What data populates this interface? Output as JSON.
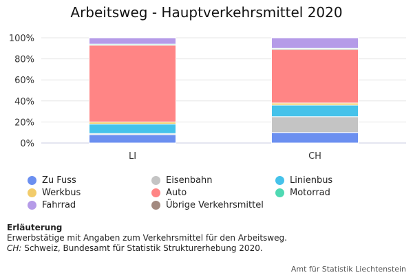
{
  "title": "Arbeitsweg - Hauptverkehrsmittel 2020",
  "chart_data": {
    "type": "bar",
    "stacked": true,
    "categories": [
      "LI",
      "CH"
    ],
    "ylim": [
      0,
      100
    ],
    "y_ticks": [
      "0%",
      "20%",
      "40%",
      "60%",
      "80%",
      "100%"
    ],
    "grid": true,
    "legend_position": "bottom",
    "series": [
      {
        "name": "Zu Fuss",
        "color": "#6b8ff0",
        "values": [
          8,
          10
        ]
      },
      {
        "name": "Eisenbahn",
        "color": "#c4c4c4",
        "values": [
          1,
          15
        ]
      },
      {
        "name": "Linienbus",
        "color": "#45c2ea",
        "values": [
          9,
          11
        ]
      },
      {
        "name": "Werkbus",
        "color": "#f2cc6b",
        "values": [
          2,
          2
        ]
      },
      {
        "name": "Auto",
        "color": "#ff8585",
        "values": [
          73,
          51
        ]
      },
      {
        "name": "Motorrad",
        "color": "#4fd9b3",
        "values": [
          1,
          1
        ]
      },
      {
        "name": "Fahrrad",
        "color": "#b59be8",
        "values": [
          6,
          10
        ]
      },
      {
        "name": "Übrige Verkehrsmittel",
        "color": "#a38a80",
        "values": [
          0,
          0
        ]
      }
    ]
  },
  "note": {
    "heading": "Erläuterung",
    "line1": "Erwerbstätige mit Angaben zum Verkehrsmittel für den Arbeitsweg.",
    "source_key": "CH:",
    "source_text": " Schweiz, Bundesamt für Statistik Strukturerhebung 2020."
  },
  "credit": "Amt für Statistik Liechtenstein"
}
